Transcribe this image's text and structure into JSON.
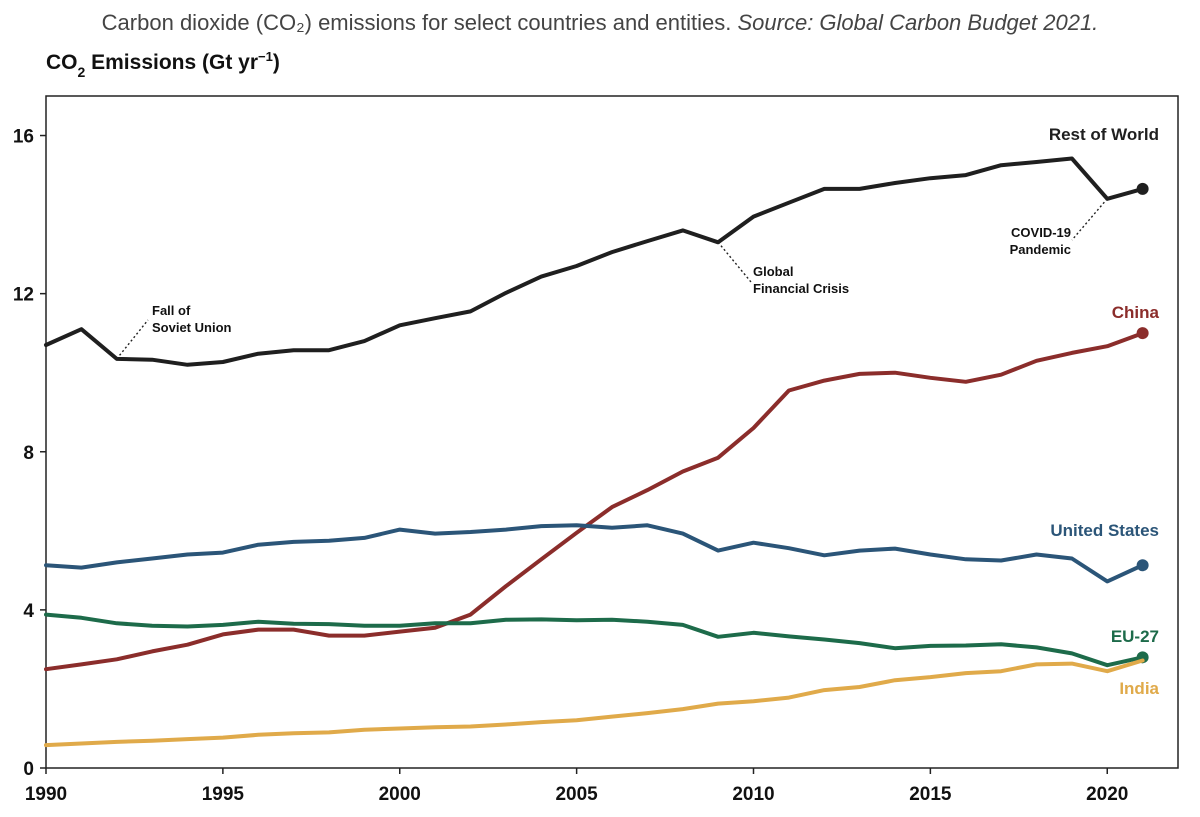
{
  "caption": {
    "text": "Carbon dioxide (CO₂) emissions for select countries and entities. ",
    "source": "Source: Global Carbon Budget 2021."
  },
  "chart_data": {
    "type": "line",
    "title": "Carbon dioxide (CO₂) emissions for select countries and entities.",
    "ylabel": "CO₂ Emissions (Gt yr⁻¹)",
    "ylabel_parts": {
      "main": "CO",
      "sub": "2",
      "rest": " Emissions (Gt yr",
      "sup": "−1",
      "close": ")"
    },
    "xlabel": "",
    "xlim": [
      1990,
      2022
    ],
    "ylim": [
      0,
      17
    ],
    "xticks": [
      1990,
      1995,
      2000,
      2005,
      2010,
      2015,
      2020
    ],
    "yticks": [
      0,
      4,
      8,
      12,
      16
    ],
    "grid": false,
    "x": [
      1990,
      1991,
      1992,
      1993,
      1994,
      1995,
      1996,
      1997,
      1998,
      1999,
      2000,
      2001,
      2002,
      2003,
      2004,
      2005,
      2006,
      2007,
      2008,
      2009,
      2010,
      2011,
      2012,
      2013,
      2014,
      2015,
      2016,
      2017,
      2018,
      2019,
      2020,
      2021
    ],
    "series": [
      {
        "name": "Rest of World",
        "color": "#1f1f1f",
        "values": [
          10.7,
          11.1,
          10.35,
          10.33,
          10.2,
          10.27,
          10.48,
          10.57,
          10.57,
          10.8,
          11.2,
          11.38,
          11.55,
          12.02,
          12.43,
          12.7,
          13.05,
          13.33,
          13.6,
          13.3,
          13.95,
          14.3,
          14.65,
          14.65,
          14.8,
          14.92,
          15.0,
          15.25,
          15.33,
          15.42,
          14.4,
          14.65
        ],
        "end_marker": true
      },
      {
        "name": "China",
        "color": "#8b2d2b",
        "values": [
          2.5,
          2.62,
          2.75,
          2.95,
          3.12,
          3.38,
          3.5,
          3.5,
          3.35,
          3.35,
          3.45,
          3.55,
          3.88,
          4.6,
          5.28,
          5.95,
          6.6,
          7.03,
          7.5,
          7.85,
          8.6,
          9.55,
          9.8,
          9.97,
          10.0,
          9.87,
          9.77,
          9.95,
          10.3,
          10.5,
          10.67,
          11.0
        ],
        "end_marker": true
      },
      {
        "name": "United States",
        "color": "#2b5578",
        "values": [
          5.13,
          5.07,
          5.2,
          5.3,
          5.4,
          5.45,
          5.65,
          5.72,
          5.75,
          5.82,
          6.03,
          5.93,
          5.97,
          6.03,
          6.12,
          6.14,
          6.08,
          6.14,
          5.93,
          5.5,
          5.7,
          5.56,
          5.38,
          5.5,
          5.55,
          5.4,
          5.28,
          5.25,
          5.4,
          5.3,
          4.72,
          5.13
        ],
        "end_marker": true
      },
      {
        "name": "EU-27",
        "color": "#1d6b4a",
        "values": [
          3.88,
          3.8,
          3.66,
          3.6,
          3.58,
          3.62,
          3.7,
          3.65,
          3.64,
          3.6,
          3.6,
          3.66,
          3.66,
          3.75,
          3.76,
          3.74,
          3.75,
          3.7,
          3.62,
          3.32,
          3.42,
          3.33,
          3.25,
          3.16,
          3.03,
          3.09,
          3.1,
          3.13,
          3.05,
          2.9,
          2.6,
          2.8
        ],
        "end_marker": true
      },
      {
        "name": "India",
        "color": "#e0aa4a",
        "values": [
          0.58,
          0.62,
          0.66,
          0.69,
          0.73,
          0.77,
          0.84,
          0.88,
          0.9,
          0.97,
          1.0,
          1.03,
          1.05,
          1.1,
          1.16,
          1.21,
          1.3,
          1.39,
          1.49,
          1.63,
          1.69,
          1.78,
          1.97,
          2.05,
          2.22,
          2.3,
          2.4,
          2.45,
          2.62,
          2.64,
          2.45,
          2.72
        ],
        "end_marker": false
      }
    ],
    "annotations": [
      {
        "name": "soviet",
        "lines": [
          "Fall of",
          "Soviet Union"
        ],
        "x": 1992,
        "y": 10.35
      },
      {
        "name": "financial-crisis",
        "lines": [
          "Global",
          "Financial Crisis"
        ],
        "x": 2009,
        "y": 13.3
      },
      {
        "name": "covid",
        "lines": [
          "COVID-19",
          "Pandemic"
        ],
        "x": 2020,
        "y": 14.4
      }
    ]
  }
}
